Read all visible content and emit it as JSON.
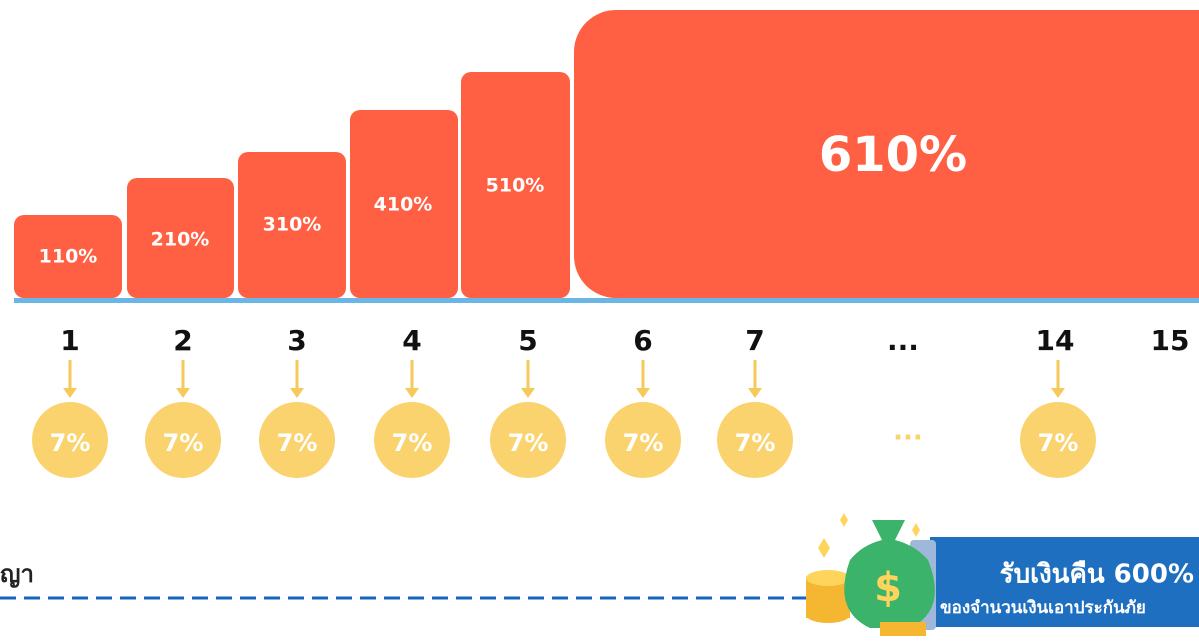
{
  "steps": [
    {
      "label": "110%"
    },
    {
      "label": "210%"
    },
    {
      "label": "310%"
    },
    {
      "label": "410%"
    },
    {
      "label": "510%"
    },
    {
      "label": "610%"
    }
  ],
  "years": [
    "1",
    "2",
    "3",
    "4",
    "5",
    "6",
    "7",
    "...",
    "14",
    "15"
  ],
  "coupons": [
    "7%",
    "7%",
    "7%",
    "7%",
    "7%",
    "7%",
    "7%",
    "...",
    "7%"
  ],
  "contract_label": "ญา",
  "payout": {
    "title": "รับเงินคืน 600%",
    "subtitle": "ของจำนวนเงินเอาประกันภัย"
  }
}
